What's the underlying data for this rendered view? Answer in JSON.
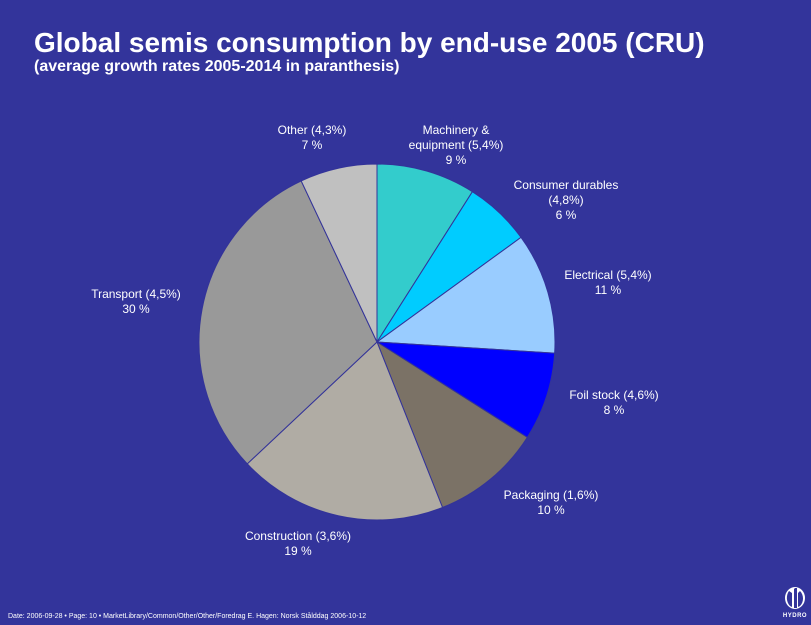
{
  "slide": {
    "title": "Global semis consumption by end-use 2005 (CRU)",
    "subtitle": "(average growth rates 2005-2014 in paranthesis)",
    "footer": "Date: 2006-09-28 • Page: 10 • MarketLibrary/Common/Other/Other/Foredrag E. Hagen: Norsk Stålddag 2006-10-12",
    "logo_text": "HYDRO"
  },
  "chart_data": {
    "type": "pie",
    "title": "Global semis consumption by end-use 2005 (CRU)",
    "subtitle": "(average growth rates 2005-2014 in paranthesis)",
    "start": "12 o'clock",
    "direction": "clockwise",
    "legend": "none",
    "slices": [
      {
        "label_lines": [
          "Machinery &",
          "equipment (5,4%)",
          "9 %"
        ],
        "category": "Machinery & equipment",
        "growth_rate": "5,4%",
        "value": 9,
        "value_label": "9 %",
        "color": "#33cccc"
      },
      {
        "label_lines": [
          "Consumer durables",
          "(4,8%)",
          "6 %"
        ],
        "category": "Consumer durables",
        "growth_rate": "4,8%",
        "value": 6,
        "value_label": "6 %",
        "color": "#00ccff"
      },
      {
        "label_lines": [
          "Electrical (5,4%)",
          "11 %"
        ],
        "category": "Electrical",
        "growth_rate": "5,4%",
        "value": 11,
        "value_label": "11 %",
        "color": "#99ccff"
      },
      {
        "label_lines": [
          "Foil stock (4,6%)",
          "8 %"
        ],
        "category": "Foil stock",
        "growth_rate": "4,6%",
        "value": 8,
        "value_label": "8 %",
        "color": "#0000ff"
      },
      {
        "label_lines": [
          "Packaging (1,6%)",
          "10 %"
        ],
        "category": "Packaging",
        "growth_rate": "1,6%",
        "value": 10,
        "value_label": "10 %",
        "color": "#7b7266"
      },
      {
        "label_lines": [
          "Construction (3,6%)",
          "19 %"
        ],
        "category": "Construction",
        "growth_rate": "3,6%",
        "value": 19,
        "value_label": "19 %",
        "color": "#b0aca4"
      },
      {
        "label_lines": [
          "Transport (4,5%)",
          "30 %"
        ],
        "category": "Transport",
        "growth_rate": "4,5%",
        "value": 30,
        "value_label": "30 %",
        "color": "#999999"
      },
      {
        "label_lines": [
          "Other  (4,3%)",
          "7 %"
        ],
        "category": "Other",
        "growth_rate": "4,3%",
        "value": 7,
        "value_label": "7 %",
        "color": "#c0c0c0"
      }
    ]
  }
}
